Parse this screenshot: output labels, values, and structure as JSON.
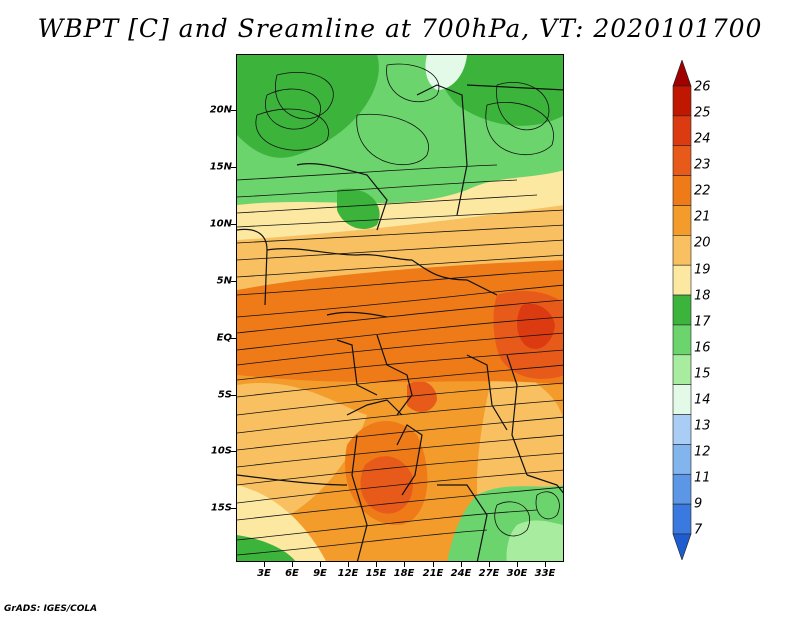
{
  "title": "WBPT [C] and Sreamline at 700hPa, VT: 2020101700",
  "footer": "GrADS: IGES/COLA",
  "map": {
    "variable": "WBPT",
    "unit": "C",
    "level": "700hPa",
    "valid_time": "2020101700",
    "lat_labels": [
      "20N",
      "15N",
      "10N",
      "5N",
      "EQ",
      "5S",
      "10S",
      "15S"
    ],
    "lon_labels": [
      "3E",
      "6E",
      "9E",
      "12E",
      "15E",
      "18E",
      "21E",
      "24E",
      "27E",
      "30E",
      "33E"
    ]
  },
  "colorbar": {
    "labels": [
      "26",
      "25",
      "24",
      "23",
      "22",
      "21",
      "20",
      "19",
      "18",
      "17",
      "16",
      "15",
      "14",
      "13",
      "12",
      "11",
      "9",
      "7"
    ],
    "colors": [
      "#a00000",
      "#c01800",
      "#dc3a10",
      "#e85a1a",
      "#ef7a18",
      "#f39c2c",
      "#f8c060",
      "#fde8a2",
      "#3cb43c",
      "#6cd46c",
      "#a8eca0",
      "#e4fae8",
      "#aacdf5",
      "#82b4ee",
      "#5c96e6",
      "#3a7ae0",
      "#1e5cd0"
    ]
  }
}
